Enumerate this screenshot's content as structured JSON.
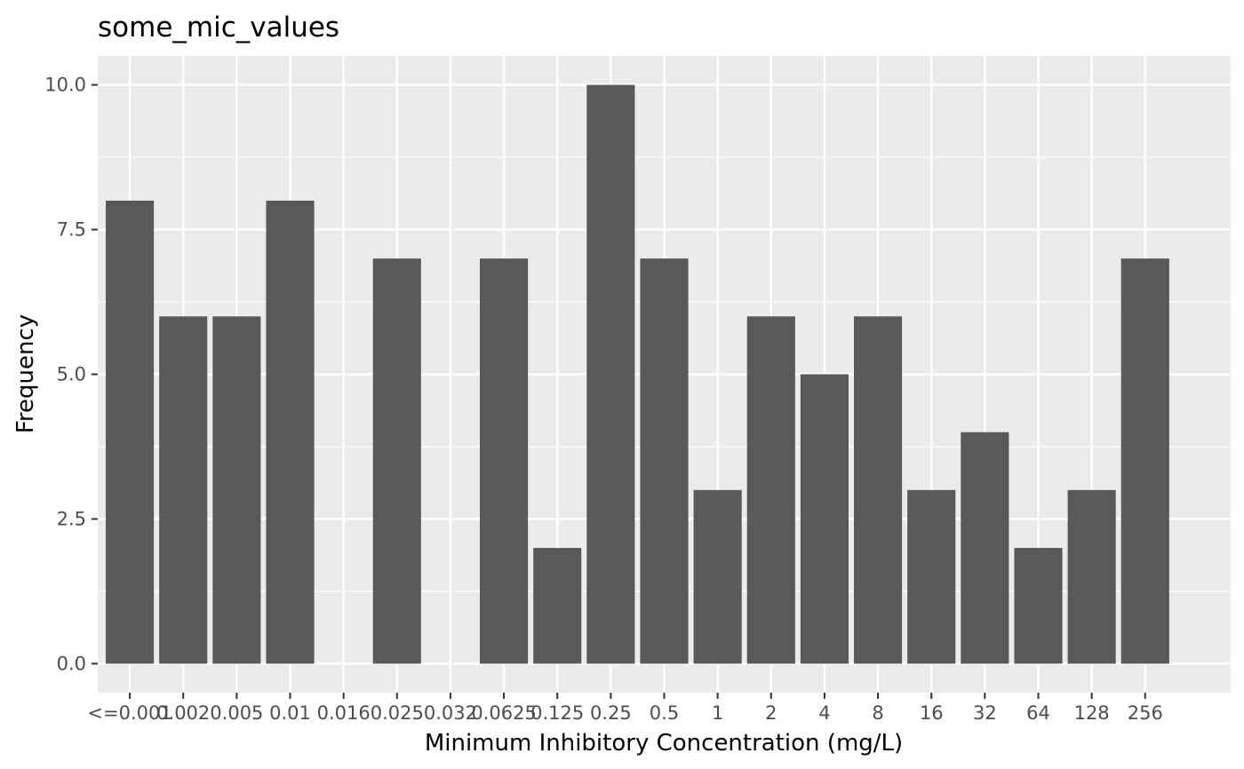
{
  "chart_data": {
    "type": "bar",
    "title": "some_mic_values",
    "xlabel": "Minimum Inhibitory Concentration (mg/L)",
    "ylabel": "Frequency",
    "categories": [
      "<=0.001",
      "0.002",
      "0.005",
      "0.01",
      "0.016",
      "0.025",
      "0.032",
      "0.0625",
      "0.125",
      "0.25",
      "0.5",
      "1",
      "2",
      "4",
      "8",
      "16",
      "32",
      "64",
      "128",
      "256"
    ],
    "values": [
      8,
      6,
      6,
      8,
      0,
      7,
      0,
      7,
      2,
      10,
      7,
      3,
      6,
      5,
      6,
      3,
      4,
      2,
      3,
      7
    ],
    "ylim": [
      -0.5,
      10.5
    ],
    "yticks": [
      0,
      2.5,
      5,
      7.5,
      10
    ],
    "ytick_labels": [
      "0.0",
      "2.5",
      "5.0",
      "7.5",
      "10.0"
    ],
    "grid": true,
    "colors": {
      "panel_background": "#ebebeb",
      "grid_line": "#ffffff",
      "bar_fill": "#595959",
      "tick_mark": "#333333",
      "tick_label": "#4d4d4d"
    }
  }
}
